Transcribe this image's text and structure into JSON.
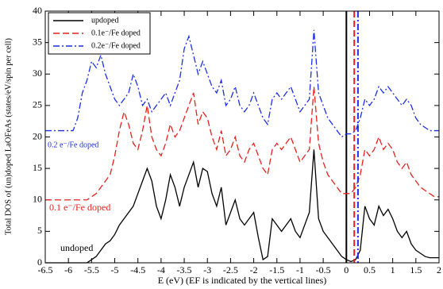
{
  "chart_data": {
    "type": "line",
    "xlabel": "E (eV) (EF is indicated by the vertical lines)",
    "ylabel": "Total DOS of (un)doped LaOFeAs (states/eV/spin per cell)",
    "x": [
      -6.5,
      -6.0,
      -5.9,
      -5.8,
      -5.7,
      -5.6,
      -5.5,
      -5.4,
      -5.3,
      -5.2,
      -5.1,
      -5.0,
      -4.9,
      -4.8,
      -4.7,
      -4.6,
      -4.5,
      -4.4,
      -4.3,
      -4.2,
      -4.1,
      -4.0,
      -3.9,
      -3.8,
      -3.7,
      -3.6,
      -3.5,
      -3.4,
      -3.3,
      -3.2,
      -3.1,
      -3.0,
      -2.9,
      -2.8,
      -2.7,
      -2.6,
      -2.5,
      -2.4,
      -2.3,
      -2.2,
      -2.1,
      -2.0,
      -1.9,
      -1.8,
      -1.7,
      -1.6,
      -1.5,
      -1.4,
      -1.3,
      -1.2,
      -1.1,
      -1.0,
      -0.9,
      -0.8,
      -0.7,
      -0.6,
      -0.5,
      -0.4,
      -0.3,
      -0.2,
      -0.1,
      0,
      0.1,
      0.2,
      0.3,
      0.4,
      0.5,
      0.6,
      0.7,
      0.8,
      0.9,
      1.0,
      1.1,
      1.2,
      1.3,
      1.4,
      1.5,
      1.6,
      1.7,
      1.8,
      1.9,
      2.0
    ],
    "series": [
      {
        "name": "updoped",
        "color": "#000000",
        "dash": "solid",
        "fermi_level": 0,
        "values": [
          0,
          0,
          0,
          0,
          0,
          0,
          0.5,
          1,
          2,
          3,
          3.5,
          4.5,
          6,
          7,
          8,
          9,
          11,
          13,
          15,
          13,
          9,
          7,
          10,
          14,
          12,
          9,
          12,
          14,
          16,
          12,
          15,
          14.5,
          11,
          9,
          12,
          6,
          8,
          10,
          7,
          6,
          7,
          8,
          4,
          0.5,
          1,
          7,
          6,
          5,
          6,
          7,
          5,
          4,
          6,
          8,
          18,
          7,
          5,
          4,
          3,
          2,
          1,
          0.5,
          0.2,
          0.5,
          2,
          9,
          7,
          6,
          9,
          7.5,
          8.5,
          7,
          5,
          4,
          5,
          3,
          2,
          1.5,
          1,
          0.8,
          0.8,
          0.8
        ]
      },
      {
        "name": "0.1e⁻/Fe doped",
        "color": "#e8201c",
        "dash": "dashed",
        "fermi_level": 0.17,
        "values": [
          10,
          10,
          10,
          10,
          10,
          10,
          10.5,
          11,
          12,
          13,
          14,
          17,
          21,
          24,
          22,
          19,
          18,
          21,
          25,
          20,
          18,
          17,
          19,
          22,
          20,
          21,
          23,
          25,
          27,
          22,
          24,
          23,
          20,
          18,
          21,
          17,
          18,
          20,
          17,
          16,
          18,
          19,
          17,
          15,
          14,
          18,
          19,
          18,
          19,
          20,
          18,
          16,
          17,
          18,
          28,
          19,
          16,
          14,
          13,
          12,
          11,
          11,
          11,
          12,
          14,
          18,
          17,
          18,
          20,
          18,
          19,
          18,
          16,
          15,
          16,
          14,
          13,
          12,
          11.5,
          11,
          10.5,
          10.5
        ]
      },
      {
        "name": "0.2e⁻/Fe doped",
        "color": "#1c2ee8",
        "dash": "dashdot",
        "fermi_level": 0.25,
        "values": [
          21,
          21,
          21,
          23,
          27,
          29,
          32,
          31,
          33,
          30,
          28,
          26,
          25,
          26,
          27,
          30,
          28,
          25,
          26,
          24,
          25,
          26,
          27,
          25,
          27,
          29,
          34,
          36,
          33,
          30,
          32,
          30,
          28,
          27,
          29,
          25,
          26,
          28,
          25,
          24,
          25,
          27,
          25,
          23,
          22,
          26,
          27,
          26,
          27,
          28,
          26,
          24,
          25,
          26,
          37,
          27,
          25,
          23,
          22,
          21,
          20,
          20.5,
          20.5,
          21,
          23,
          26,
          25,
          26,
          28,
          27,
          28,
          27,
          26,
          25,
          26,
          25,
          23,
          22,
          21.5,
          21,
          21,
          21
        ]
      }
    ],
    "annotations": [
      "0.2 e⁻/Fe doped",
      "0.1 e⁻/Fe doped",
      "undoped"
    ],
    "xlim": [
      -6.5,
      2
    ],
    "ylim": [
      0,
      40
    ],
    "xticks": [
      -6.5,
      -6,
      -5.5,
      -5,
      -4.5,
      -4,
      -3.5,
      -3,
      -2.5,
      -2,
      -1.5,
      -1,
      -0.5,
      0,
      0.5,
      1,
      1.5,
      2
    ],
    "yticks": [
      0,
      5,
      10,
      15,
      20,
      25,
      30,
      35,
      40
    ],
    "grid": false,
    "legend_position": "upper left"
  }
}
